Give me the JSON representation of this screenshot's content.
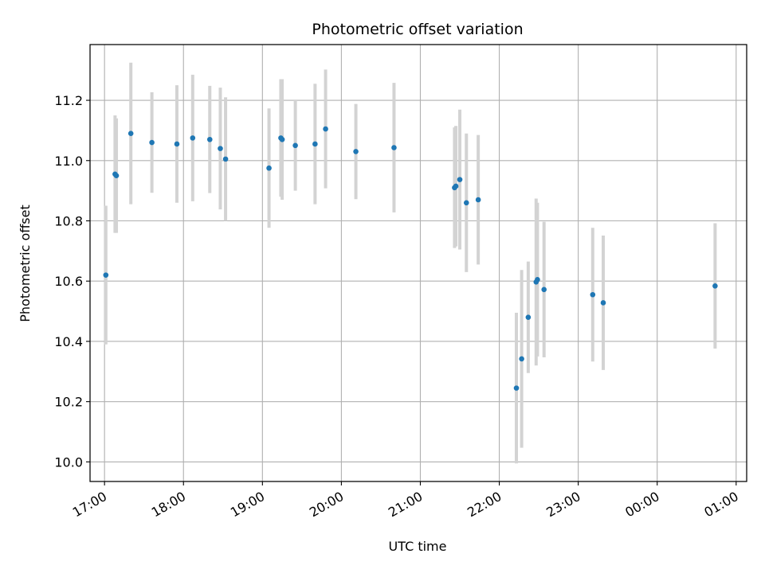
{
  "chart_data": {
    "type": "scatter",
    "title": "Photometric offset variation",
    "xlabel": "UTC time",
    "ylabel": "Photometric offset",
    "xlim": [
      "16:49",
      "01:08"
    ],
    "ylim": [
      9.935,
      11.385
    ],
    "grid": true,
    "x_tick_labels": [
      "17:00",
      "18:00",
      "19:00",
      "20:00",
      "21:00",
      "22:00",
      "23:00",
      "00:00",
      "01:00"
    ],
    "y_ticks": [
      10.0,
      10.2,
      10.4,
      10.6,
      10.8,
      11.0,
      11.2
    ],
    "y_tick_labels": [
      "10.0",
      "10.2",
      "10.4",
      "10.6",
      "10.8",
      "11.0",
      "11.2"
    ],
    "colors": {
      "points": "#1f77b4",
      "errorbars": "#d3d3d3",
      "grid": "#b0b0b0"
    },
    "series": [
      {
        "points": [
          {
            "time": "17:01",
            "y": 10.62,
            "yerr": 0.23
          },
          {
            "time": "17:08",
            "y": 10.955,
            "yerr": 0.195
          },
          {
            "time": "17:09",
            "y": 10.95,
            "yerr": 0.19
          },
          {
            "time": "17:20",
            "y": 11.09,
            "yerr": 0.235
          },
          {
            "time": "17:36",
            "y": 11.06,
            "yerr": 0.167
          },
          {
            "time": "17:55",
            "y": 11.055,
            "yerr": 0.195
          },
          {
            "time": "18:07",
            "y": 11.075,
            "yerr": 0.21
          },
          {
            "time": "18:20",
            "y": 11.07,
            "yerr": 0.178
          },
          {
            "time": "18:28",
            "y": 11.04,
            "yerr": 0.202
          },
          {
            "time": "18:32",
            "y": 11.005,
            "yerr": 0.205
          },
          {
            "time": "19:05",
            "y": 10.975,
            "yerr": 0.198
          },
          {
            "time": "19:14",
            "y": 11.075,
            "yerr": 0.195
          },
          {
            "time": "19:15",
            "y": 11.07,
            "yerr": 0.2
          },
          {
            "time": "19:25",
            "y": 11.05,
            "yerr": 0.15
          },
          {
            "time": "19:40",
            "y": 11.055,
            "yerr": 0.2
          },
          {
            "time": "19:48",
            "y": 11.105,
            "yerr": 0.197
          },
          {
            "time": "20:11",
            "y": 11.03,
            "yerr": 0.158
          },
          {
            "time": "20:40",
            "y": 11.043,
            "yerr": 0.215
          },
          {
            "time": "21:26",
            "y": 10.91,
            "yerr": 0.2
          },
          {
            "time": "21:27",
            "y": 10.915,
            "yerr": 0.2
          },
          {
            "time": "21:30",
            "y": 10.937,
            "yerr": 0.232
          },
          {
            "time": "21:35",
            "y": 10.86,
            "yerr": 0.23
          },
          {
            "time": "21:44",
            "y": 10.87,
            "yerr": 0.215
          },
          {
            "time": "22:13",
            "y": 10.245,
            "yerr": 0.25
          },
          {
            "time": "22:17",
            "y": 10.342,
            "yerr": 0.295
          },
          {
            "time": "22:22",
            "y": 10.48,
            "yerr": 0.185
          },
          {
            "time": "22:28",
            "y": 10.597,
            "yerr": 0.277
          },
          {
            "time": "22:29",
            "y": 10.605,
            "yerr": 0.255
          },
          {
            "time": "22:34",
            "y": 10.572,
            "yerr": 0.225
          },
          {
            "time": "23:11",
            "y": 10.555,
            "yerr": 0.222
          },
          {
            "time": "23:19",
            "y": 10.528,
            "yerr": 0.223
          },
          {
            "time": "00:44",
            "y": 10.584,
            "yerr": 0.208
          }
        ]
      }
    ]
  }
}
